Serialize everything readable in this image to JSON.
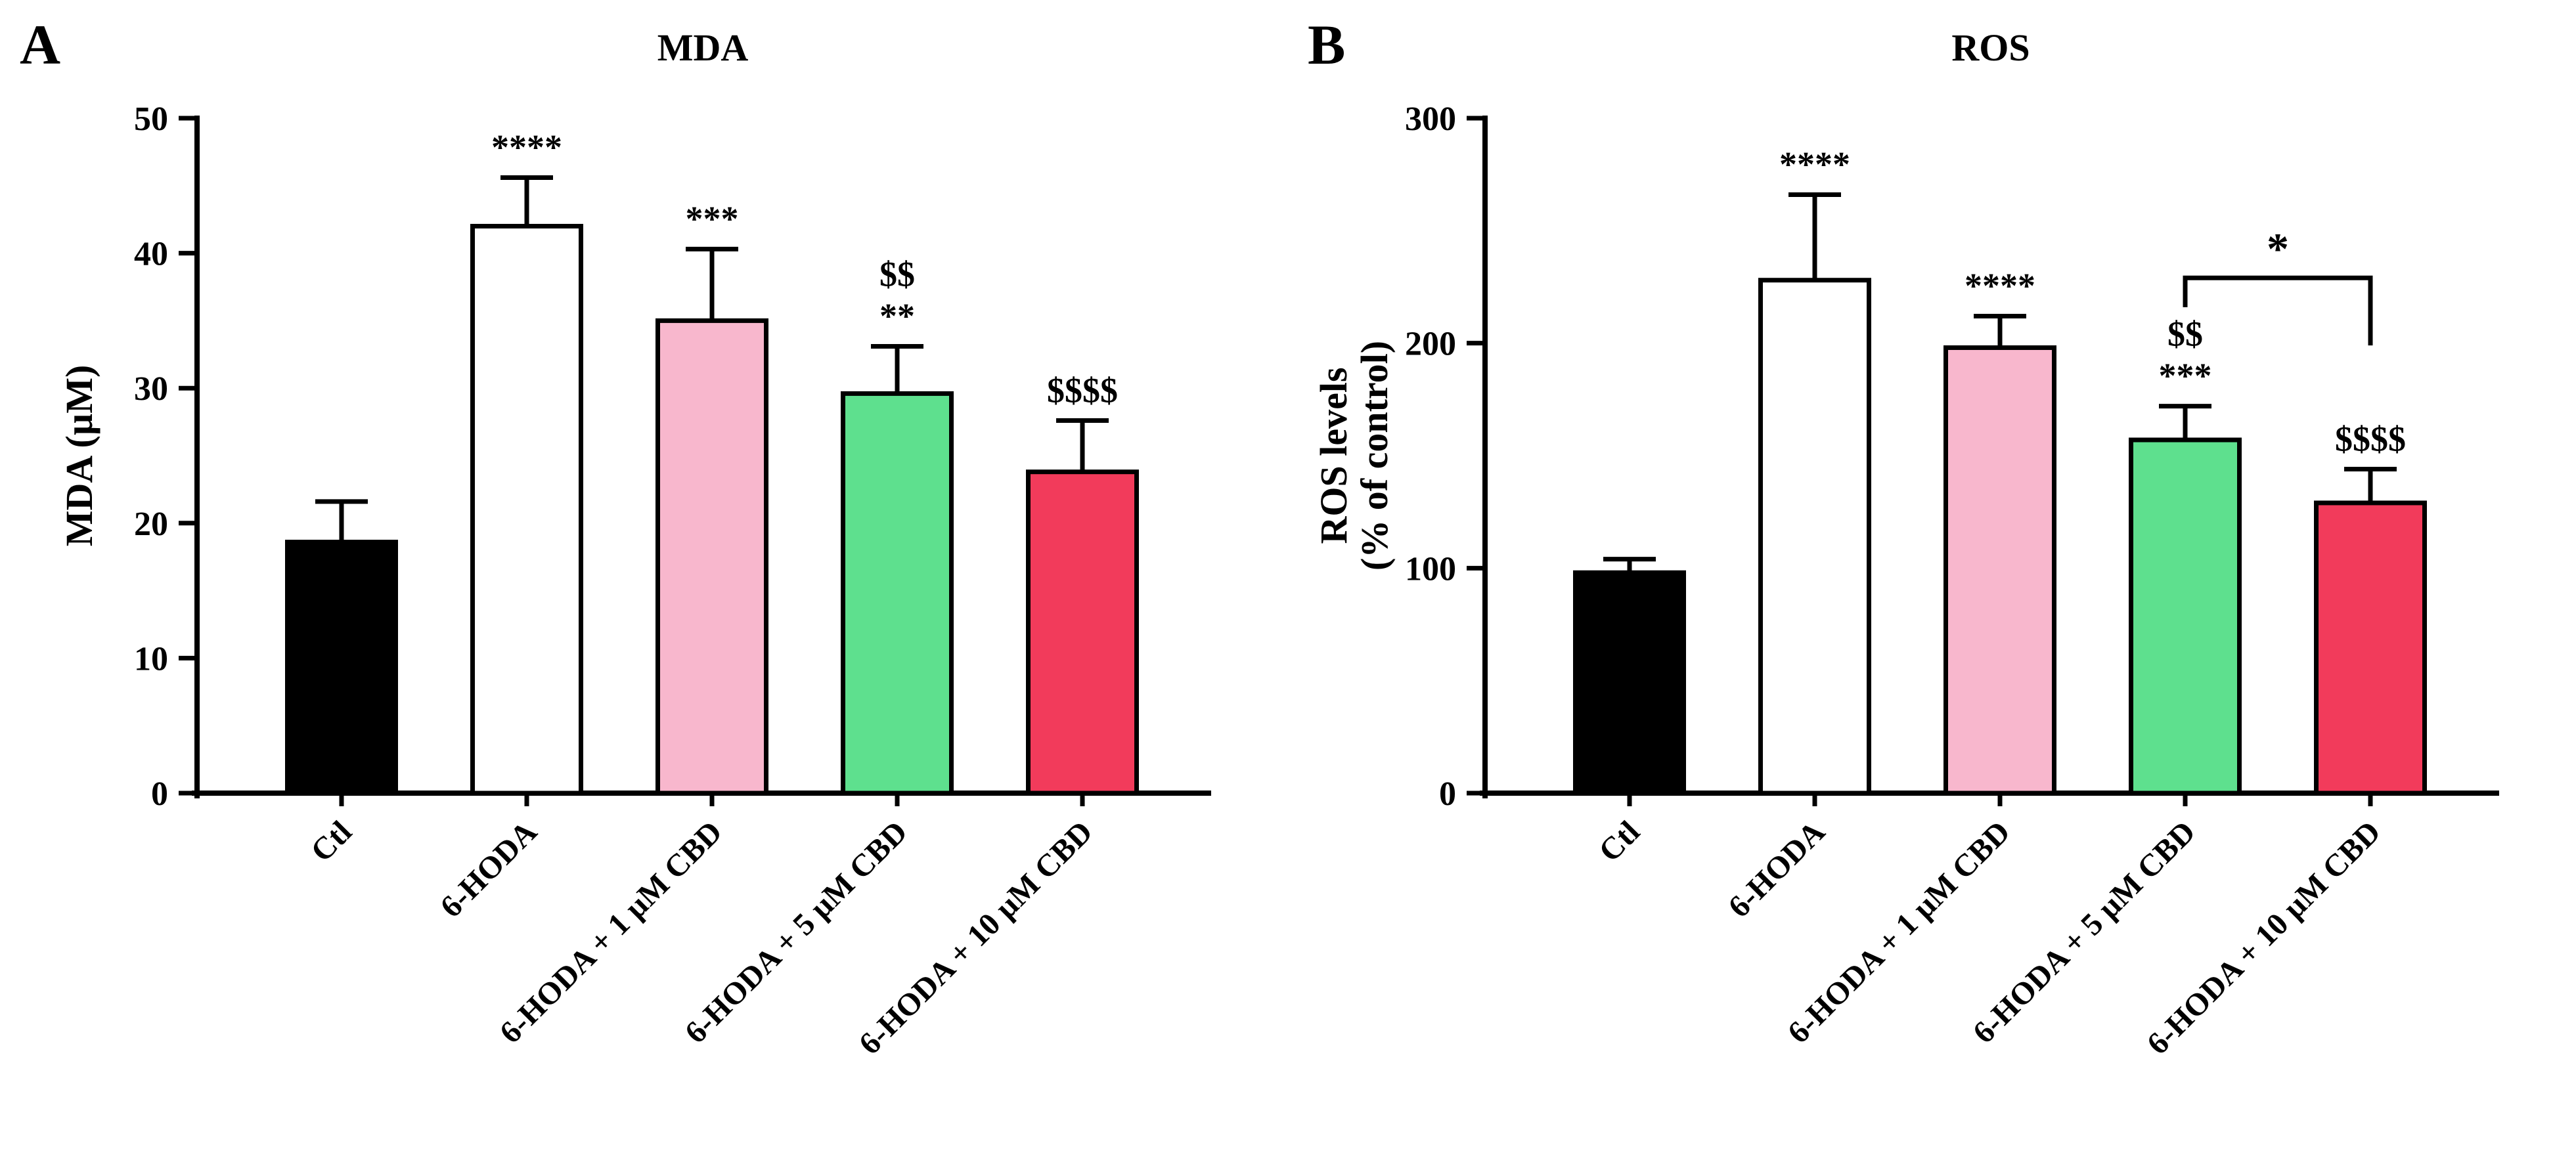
{
  "figure": {
    "background": "#ffffff",
    "panel_labels": [
      "A",
      "B"
    ]
  },
  "chart_data": [
    {
      "type": "bar",
      "panel": "A",
      "title": "MDA",
      "ylabel_lines": [
        "MDA (µM)"
      ],
      "categories": [
        "Ctl",
        "6-HODA",
        "6-HODA + 1 µM CBD",
        "6-HODA + 5 µM CBD",
        "6-HODA + 10 µM CBD"
      ],
      "values": [
        18.6,
        42.0,
        35.0,
        29.6,
        23.8
      ],
      "errors": [
        3.0,
        3.6,
        5.3,
        3.5,
        3.8
      ],
      "bar_colors": [
        "#000000",
        "#ffffff",
        "#f8b7cd",
        "#5ee08e",
        "#f23b5b"
      ],
      "annotations": [
        [],
        [
          "****"
        ],
        [
          "***"
        ],
        [
          "$$",
          "**"
        ],
        [
          "$$$$"
        ]
      ],
      "ylim": [
        0,
        50
      ],
      "yticks": [
        0,
        10,
        20,
        30,
        40,
        50
      ],
      "grid": false,
      "legend": "none"
    },
    {
      "type": "bar",
      "panel": "B",
      "title": "ROS",
      "ylabel_lines": [
        "ROS levels",
        "(% of control)"
      ],
      "categories": [
        "Ctl",
        "6-HODA",
        "6-HODA + 1 µM CBD",
        "6-HODA + 5 µM CBD",
        "6-HODA + 10 µM CBD"
      ],
      "values": [
        98,
        228,
        198,
        157,
        129
      ],
      "errors": [
        6,
        38,
        14,
        15,
        15
      ],
      "bar_colors": [
        "#000000",
        "#ffffff",
        "#f8b7cd",
        "#5ee08e",
        "#f23b5b"
      ],
      "annotations": [
        [],
        [
          "****"
        ],
        [
          "****"
        ],
        [
          "$$",
          "***"
        ],
        [
          "$$$$"
        ]
      ],
      "ylim": [
        0,
        300
      ],
      "yticks": [
        0,
        100,
        200,
        300
      ],
      "grid": false,
      "legend": "none",
      "comparison_bracket": {
        "from_index": 3,
        "to_index": 4,
        "label": "*",
        "y": 229,
        "left_leg_to": 216,
        "right_leg_to": 199
      }
    }
  ]
}
